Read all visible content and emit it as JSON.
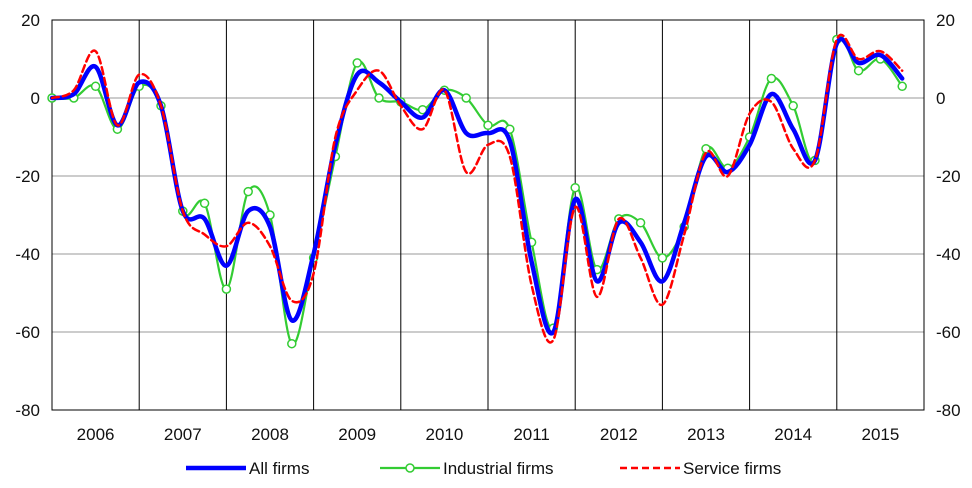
{
  "chart_data": {
    "type": "line",
    "x_range": [
      2005.75,
      2015.75
    ],
    "ylim": [
      -80,
      20
    ],
    "yticks": [
      20,
      0,
      -20,
      -40,
      -60,
      -80
    ],
    "year_labels": [
      "2006",
      "2007",
      "2008",
      "2009",
      "2010",
      "2011",
      "2012",
      "2013",
      "2014",
      "2015"
    ],
    "grid": true,
    "dual_axis_labels": true,
    "legend_position": "bottom",
    "series": [
      {
        "name": "All firms",
        "color": "#0000ff",
        "style": "solid-thick",
        "points": [
          [
            2005.75,
            0
          ],
          [
            2006.0,
            1
          ],
          [
            2006.25,
            8
          ],
          [
            2006.5,
            -7
          ],
          [
            2006.75,
            4
          ],
          [
            2007.0,
            -2
          ],
          [
            2007.25,
            -29
          ],
          [
            2007.5,
            -31
          ],
          [
            2007.75,
            -43
          ],
          [
            2008.0,
            -29
          ],
          [
            2008.25,
            -33
          ],
          [
            2008.5,
            -57
          ],
          [
            2008.75,
            -40
          ],
          [
            2009.0,
            -12
          ],
          [
            2009.25,
            6
          ],
          [
            2009.5,
            4
          ],
          [
            2009.75,
            -1
          ],
          [
            2010.0,
            -5
          ],
          [
            2010.25,
            2
          ],
          [
            2010.5,
            -9
          ],
          [
            2010.75,
            -9
          ],
          [
            2011.0,
            -11
          ],
          [
            2011.25,
            -42
          ],
          [
            2011.5,
            -60
          ],
          [
            2011.75,
            -26
          ],
          [
            2012.0,
            -47
          ],
          [
            2012.25,
            -32
          ],
          [
            2012.5,
            -37
          ],
          [
            2012.75,
            -47
          ],
          [
            2013.0,
            -32
          ],
          [
            2013.25,
            -15
          ],
          [
            2013.5,
            -19
          ],
          [
            2013.75,
            -12
          ],
          [
            2014.0,
            1
          ],
          [
            2014.25,
            -8
          ],
          [
            2014.5,
            -16
          ],
          [
            2014.75,
            14
          ],
          [
            2015.0,
            9
          ],
          [
            2015.25,
            11
          ],
          [
            2015.5,
            5
          ]
        ]
      },
      {
        "name": "Industrial firms",
        "color": "#33cc33",
        "style": "solid-markers",
        "points": [
          [
            2005.75,
            0
          ],
          [
            2006.0,
            0
          ],
          [
            2006.25,
            3
          ],
          [
            2006.5,
            -8
          ],
          [
            2006.75,
            3
          ],
          [
            2007.0,
            -2
          ],
          [
            2007.25,
            -29
          ],
          [
            2007.5,
            -27
          ],
          [
            2007.75,
            -49
          ],
          [
            2008.0,
            -24
          ],
          [
            2008.25,
            -30
          ],
          [
            2008.5,
            -63
          ],
          [
            2008.75,
            -41
          ],
          [
            2009.0,
            -15
          ],
          [
            2009.25,
            9
          ],
          [
            2009.5,
            0
          ],
          [
            2009.75,
            -1
          ],
          [
            2010.0,
            -3
          ],
          [
            2010.25,
            2
          ],
          [
            2010.5,
            0
          ],
          [
            2010.75,
            -7
          ],
          [
            2011.0,
            -8
          ],
          [
            2011.25,
            -37
          ],
          [
            2011.5,
            -59
          ],
          [
            2011.75,
            -23
          ],
          [
            2012.0,
            -44
          ],
          [
            2012.25,
            -31
          ],
          [
            2012.5,
            -32
          ],
          [
            2012.75,
            -41
          ],
          [
            2013.0,
            -33
          ],
          [
            2013.25,
            -13
          ],
          [
            2013.5,
            -18
          ],
          [
            2013.75,
            -10
          ],
          [
            2014.0,
            5
          ],
          [
            2014.25,
            -2
          ],
          [
            2014.5,
            -16
          ],
          [
            2014.75,
            15
          ],
          [
            2015.0,
            7
          ],
          [
            2015.25,
            10
          ],
          [
            2015.5,
            3
          ]
        ]
      },
      {
        "name": "Service firms",
        "color": "#ff0000",
        "style": "dashed",
        "points": [
          [
            2005.75,
            0
          ],
          [
            2006.0,
            2
          ],
          [
            2006.25,
            12
          ],
          [
            2006.5,
            -7
          ],
          [
            2006.75,
            6
          ],
          [
            2007.0,
            -2
          ],
          [
            2007.25,
            -29
          ],
          [
            2007.5,
            -35
          ],
          [
            2007.75,
            -38
          ],
          [
            2008.0,
            -32
          ],
          [
            2008.25,
            -38
          ],
          [
            2008.5,
            -52
          ],
          [
            2008.75,
            -45
          ],
          [
            2009.0,
            -10
          ],
          [
            2009.25,
            2
          ],
          [
            2009.5,
            7
          ],
          [
            2009.75,
            -2
          ],
          [
            2010.0,
            -8
          ],
          [
            2010.25,
            2
          ],
          [
            2010.5,
            -19
          ],
          [
            2010.75,
            -12
          ],
          [
            2011.0,
            -15
          ],
          [
            2011.25,
            -48
          ],
          [
            2011.5,
            -62
          ],
          [
            2011.75,
            -28
          ],
          [
            2012.0,
            -51
          ],
          [
            2012.25,
            -31
          ],
          [
            2012.5,
            -41
          ],
          [
            2012.75,
            -53
          ],
          [
            2013.0,
            -35
          ],
          [
            2013.25,
            -14
          ],
          [
            2013.5,
            -20
          ],
          [
            2013.75,
            -4
          ],
          [
            2014.0,
            -1
          ],
          [
            2014.25,
            -13
          ],
          [
            2014.5,
            -16
          ],
          [
            2014.75,
            15
          ],
          [
            2015.0,
            10
          ],
          [
            2015.25,
            12
          ],
          [
            2015.5,
            7
          ]
        ]
      }
    ]
  }
}
